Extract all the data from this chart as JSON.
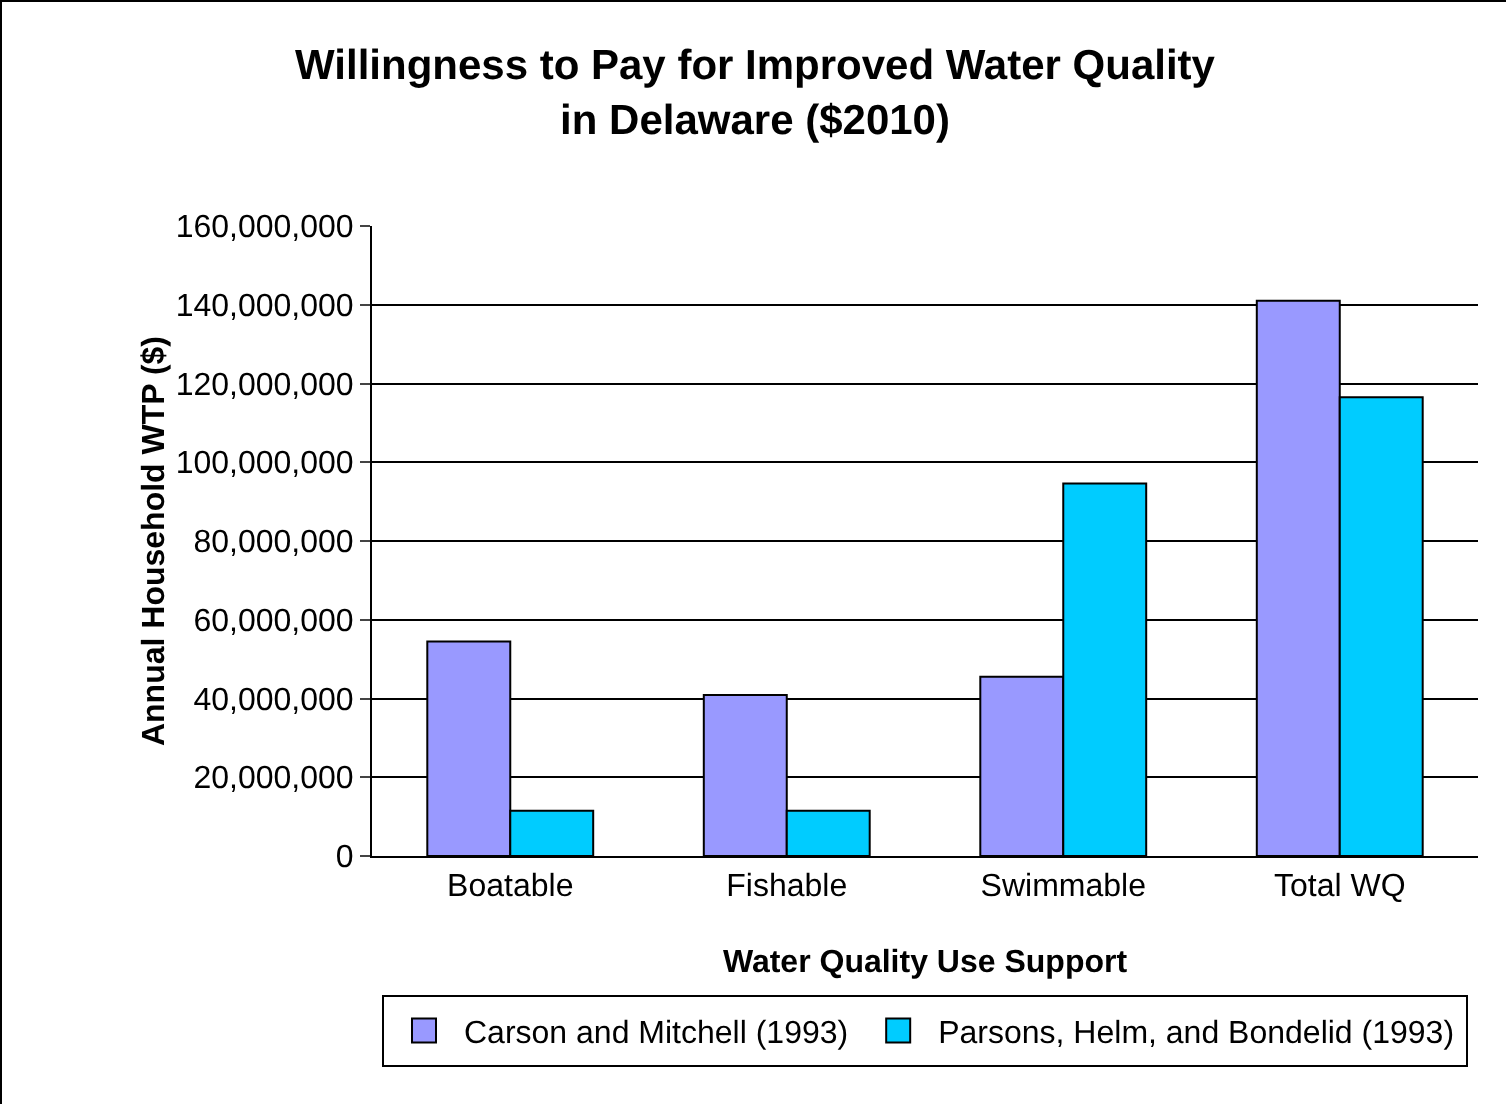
{
  "chart_data": {
    "type": "bar",
    "title": "Willingness to Pay for Improved Water Quality\nin Delaware ($2010)",
    "xlabel": "Water Quality Use Support",
    "ylabel": "Annual Household WTP ($)",
    "categories": [
      "Boatable",
      "Fishable",
      "Swimmable",
      "Total WQ"
    ],
    "series": [
      {
        "name": "Carson and Mitchell (1993)",
        "color": "#9999ff",
        "values": [
          54500000,
          40900000,
          45500000,
          141000000
        ]
      },
      {
        "name": "Parsons, Helm, and Bondelid (1993)",
        "color": "#00ccff",
        "values": [
          11500000,
          11500000,
          94600000,
          116500000
        ]
      }
    ],
    "ylim": [
      0,
      160000000
    ],
    "yticks": [
      {
        "value": 0,
        "label": "0"
      },
      {
        "value": 20000000,
        "label": "20,000,000"
      },
      {
        "value": 40000000,
        "label": "40,000,000"
      },
      {
        "value": 60000000,
        "label": "60,000,000"
      },
      {
        "value": 80000000,
        "label": "80,000,000"
      },
      {
        "value": 100000000,
        "label": "100,000,000"
      },
      {
        "value": 120000000,
        "label": "120,000,000"
      },
      {
        "value": 140000000,
        "label": "140,000,000"
      },
      {
        "value": 160000000,
        "label": "160,000,000"
      }
    ],
    "grid": "y",
    "legend": "bottom"
  }
}
